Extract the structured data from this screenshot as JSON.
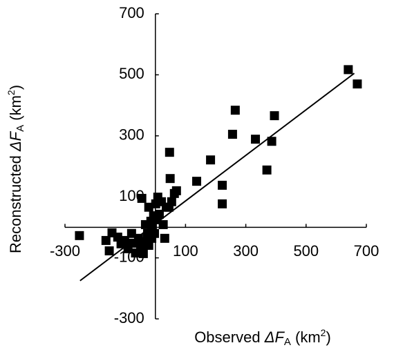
{
  "chart_data": {
    "type": "scatter",
    "xlabel": {
      "prefix": "Observed ",
      "symbol": "ΔF",
      "subscript": "A",
      "unit": " (km",
      "superscript": "2",
      "close": ")"
    },
    "ylabel": {
      "prefix": "Reconstructed ",
      "symbol": "ΔF",
      "subscript": "A",
      "unit": " (km",
      "superscript": "2",
      "close": ")"
    },
    "xlim": [
      -300,
      700
    ],
    "ylim": [
      -300,
      700
    ],
    "xticks": [
      -300,
      100,
      300,
      500,
      700
    ],
    "yticks": [
      -300,
      -100,
      100,
      300,
      500,
      700
    ],
    "color": "#000000",
    "x": [
      -252,
      -164,
      -153,
      -144,
      -125,
      -114,
      -102,
      -91,
      -79,
      -75,
      -66,
      -56,
      -49,
      -40,
      -33,
      -26,
      -45,
      -22,
      -15,
      -10,
      -6,
      1,
      8,
      13,
      20,
      26,
      36,
      31,
      45,
      47,
      49,
      54,
      63,
      70,
      137,
      183,
      222,
      222,
      256,
      265,
      332,
      370,
      386,
      395,
      640,
      670,
      -12,
      -3,
      3,
      -33,
      -22
    ],
    "y": [
      -27,
      -43,
      -77,
      -18,
      -32,
      -54,
      -43,
      -70,
      -20,
      -52,
      -84,
      -36,
      -63,
      -86,
      -47,
      -20,
      95,
      66,
      20,
      -2,
      38,
      77,
      99,
      43,
      84,
      9,
      66,
      -36,
      66,
      246,
      160,
      84,
      111,
      120,
      151,
      221,
      138,
      77,
      305,
      384,
      289,
      188,
      282,
      366,
      517,
      470,
      -36,
      -20,
      25,
      9,
      -59
    ],
    "trend": {
      "x": [
        -250,
        660
      ],
      "y": [
        -175,
        505
      ]
    }
  }
}
